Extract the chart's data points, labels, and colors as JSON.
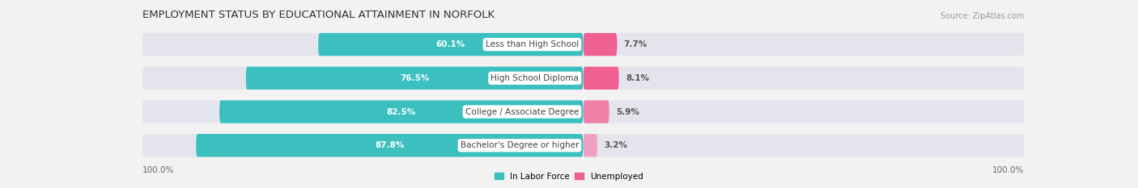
{
  "title": "EMPLOYMENT STATUS BY EDUCATIONAL ATTAINMENT IN NORFOLK",
  "source": "Source: ZipAtlas.com",
  "categories": [
    "Less than High School",
    "High School Diploma",
    "College / Associate Degree",
    "Bachelor's Degree or higher"
  ],
  "in_labor_force": [
    60.1,
    76.5,
    82.5,
    87.8
  ],
  "unemployed": [
    7.7,
    8.1,
    5.9,
    3.2
  ],
  "labor_force_color": "#3bbfbf",
  "unemployed_colors": [
    "#f06090",
    "#f06090",
    "#f080a8",
    "#f0a0c0"
  ],
  "bar_height": 0.68,
  "background_color": "#f2f2f2",
  "bar_bg_color": "#e4e4ec",
  "xlim_left": 100,
  "xlim_right": 100,
  "x_left_label": "100.0%",
  "x_right_label": "100.0%",
  "legend_labor": "In Labor Force",
  "legend_unemployed": "Unemployed",
  "title_fontsize": 9.5,
  "label_fontsize": 7.5,
  "bar_label_fontsize": 7.5,
  "category_fontsize": 7.5,
  "source_fontsize": 7
}
